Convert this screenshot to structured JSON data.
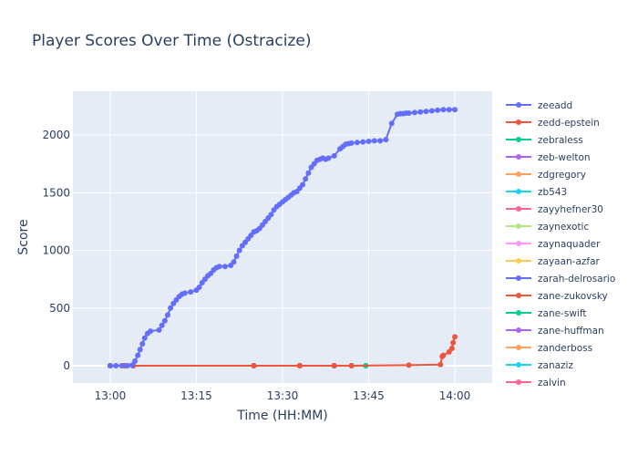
{
  "chart_data": {
    "type": "line",
    "title": "Player Scores Over Time (Ostracize)",
    "xlabel": "Time (HH:MM)",
    "ylabel": "Score",
    "x_unit": "minutes after 13:00",
    "xlim": [
      -6.5,
      66.5
    ],
    "ylim": [
      -150,
      2380
    ],
    "x_ticks": [
      {
        "value": 0,
        "label": "13:00"
      },
      {
        "value": 15,
        "label": "13:15"
      },
      {
        "value": 30,
        "label": "13:30"
      },
      {
        "value": 45,
        "label": "13:45"
      },
      {
        "value": 60,
        "label": "14:00"
      }
    ],
    "y_ticks": [
      {
        "value": 0,
        "label": "0"
      },
      {
        "value": 500,
        "label": "500"
      },
      {
        "value": 1000,
        "label": "1000"
      },
      {
        "value": 1500,
        "label": "1500"
      },
      {
        "value": 2000,
        "label": "2000"
      }
    ],
    "grid": true,
    "legend_position": "right",
    "colors": {
      "plot_bg": "#e5ecf6",
      "grid": "#ffffff",
      "text": "#2a3f5f"
    },
    "series": [
      {
        "name": "zeeadd",
        "color": "#636efa",
        "x": [
          0,
          1,
          2,
          3,
          3.8,
          4.3,
          4.8,
          5.2,
          5.6,
          6.0,
          6.5,
          7.0,
          8.5,
          9.0,
          9.5,
          10.0,
          10.5,
          11.0,
          11.5,
          12.0,
          12.5,
          13.0,
          14.0,
          15.0,
          15.5,
          16.0,
          16.5,
          17.0,
          17.5,
          18.0,
          18.5,
          19.0,
          20.0,
          21.0,
          21.5,
          22.0,
          22.5,
          23.0,
          23.5,
          24.0,
          24.5,
          25.0,
          25.5,
          26.0,
          26.5,
          27.0,
          27.5,
          28.0,
          28.5,
          29.0,
          29.5,
          30.0,
          30.5,
          31.0,
          31.5,
          32.0,
          32.5,
          33.0,
          33.5,
          34.0,
          34.5,
          35.0,
          35.5,
          36.0,
          36.5,
          37.0,
          37.5,
          38.0,
          39.0,
          40.0,
          40.5,
          41.0,
          41.5,
          42.0,
          43.0,
          44.0,
          45.0,
          46.0,
          47.0,
          48.0,
          49.0,
          50.0,
          50.5,
          51.0,
          51.5,
          52.0,
          53.0,
          54.0,
          55.0,
          56.0,
          57.0,
          58.0,
          59.0,
          60.0
        ],
        "y": [
          0,
          0,
          0,
          0,
          5,
          40,
          90,
          140,
          190,
          240,
          280,
          300,
          310,
          350,
          390,
          440,
          500,
          540,
          570,
          600,
          620,
          630,
          640,
          655,
          680,
          720,
          750,
          780,
          800,
          830,
          850,
          860,
          860,
          870,
          900,
          950,
          1000,
          1040,
          1070,
          1100,
          1130,
          1160,
          1170,
          1190,
          1220,
          1250,
          1280,
          1310,
          1350,
          1380,
          1400,
          1420,
          1440,
          1460,
          1480,
          1500,
          1510,
          1540,
          1570,
          1620,
          1670,
          1720,
          1750,
          1780,
          1790,
          1800,
          1790,
          1800,
          1820,
          1880,
          1900,
          1920,
          1925,
          1930,
          1935,
          1940,
          1945,
          1950,
          1950,
          1960,
          2100,
          2180,
          2185,
          2185,
          2190,
          2190,
          2195,
          2200,
          2205,
          2210,
          2215,
          2220,
          2220,
          2220
        ]
      },
      {
        "name": "zedd-epstein",
        "color": "#ef553b",
        "x": [
          0,
          2.5,
          4,
          25,
          33,
          39,
          42,
          52,
          57.5,
          57.8,
          58,
          59,
          59.5,
          59.7,
          60
        ],
        "y": [
          0,
          0,
          0,
          0,
          0,
          0,
          0,
          5,
          10,
          80,
          90,
          120,
          150,
          200,
          250
        ]
      },
      {
        "name": "zebraless",
        "color": "#00cc96",
        "x": [
          0,
          2.5,
          4,
          25,
          33,
          39,
          44.5
        ],
        "y": [
          0,
          0,
          0,
          0,
          0,
          0,
          0
        ]
      },
      {
        "name": "zeb-welton",
        "color": "#ab63fa",
        "x": [
          0,
          2.5,
          4,
          25,
          33,
          39,
          42
        ],
        "y": [
          0,
          0,
          0,
          0,
          0,
          0,
          0
        ]
      },
      {
        "name": "zdgregory",
        "color": "#ffa15a",
        "x": [
          0,
          2.5,
          4,
          25,
          33,
          39,
          44.5
        ],
        "y": [
          0,
          0,
          0,
          0,
          0,
          0,
          0
        ]
      },
      {
        "name": "zb543",
        "color": "#19d3f3",
        "x": [
          0,
          2.5,
          4
        ],
        "y": [
          0,
          0,
          0
        ]
      },
      {
        "name": "zayyhefner30",
        "color": "#ff6692",
        "x": [
          0,
          2.5,
          4
        ],
        "y": [
          0,
          0,
          0
        ]
      },
      {
        "name": "zaynexotic",
        "color": "#b6e880",
        "x": [
          0,
          2.5
        ],
        "y": [
          0,
          0
        ]
      },
      {
        "name": "zaynaquader",
        "color": "#ff97ff",
        "x": [
          0,
          2.5
        ],
        "y": [
          0,
          0
        ]
      },
      {
        "name": "zayaan-azfar",
        "color": "#fecb52",
        "x": [
          0
        ],
        "y": [
          0
        ]
      },
      {
        "name": "zarah-delrosario",
        "color": "#636efa",
        "x": [
          0,
          2.5,
          4
        ],
        "y": [
          0,
          0,
          0
        ]
      },
      {
        "name": "zane-zukovsky",
        "color": "#ef553b",
        "x": [
          0,
          2.5,
          4
        ],
        "y": [
          0,
          0,
          0
        ]
      },
      {
        "name": "zane-swift",
        "color": "#00cc96",
        "x": [
          0,
          2.5
        ],
        "y": [
          0,
          0
        ]
      },
      {
        "name": "zane-huffman",
        "color": "#ab63fa",
        "x": [
          0,
          2.5
        ],
        "y": [
          0,
          0
        ]
      },
      {
        "name": "zanderboss",
        "color": "#ffa15a",
        "x": [
          0,
          2.5,
          4,
          25,
          33,
          39,
          44.5
        ],
        "y": [
          0,
          0,
          0,
          0,
          0,
          0,
          0
        ]
      },
      {
        "name": "zanaziz",
        "color": "#19d3f3",
        "x": [
          0,
          2.5
        ],
        "y": [
          0,
          0
        ]
      },
      {
        "name": "zalvin",
        "color": "#ff6692",
        "x": [
          0,
          2.5
        ],
        "y": [
          0,
          0
        ]
      }
    ]
  }
}
